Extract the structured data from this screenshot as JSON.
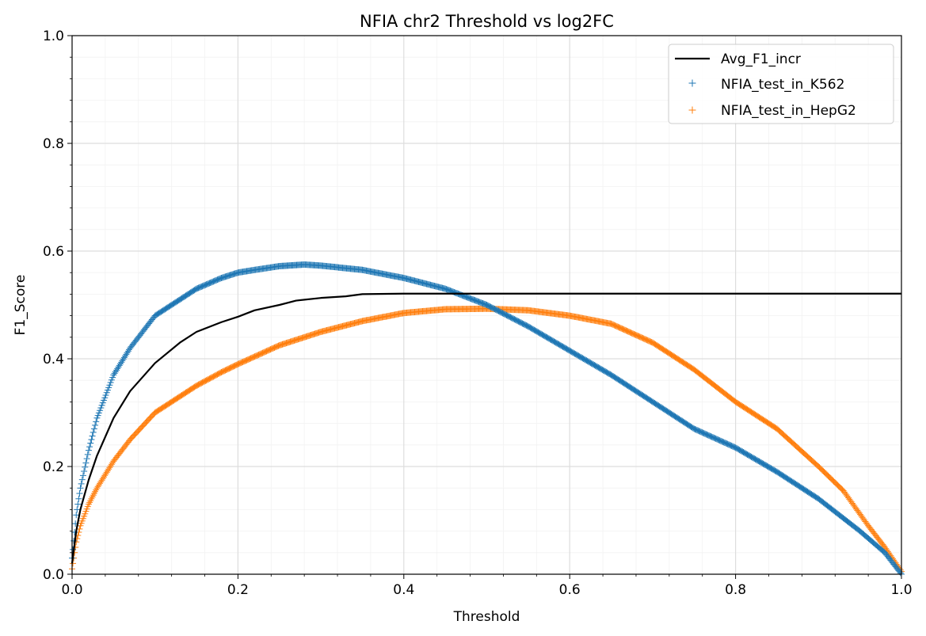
{
  "chart_data": {
    "type": "line",
    "title": "NFIA chr2 Threshold vs log2FC",
    "xlabel": "Threshold",
    "ylabel": "F1_Score",
    "xlim": [
      0,
      1
    ],
    "ylim": [
      0,
      1
    ],
    "x_ticks": [
      "0.0",
      "0.2",
      "0.4",
      "0.6",
      "0.8",
      "1.0"
    ],
    "y_ticks": [
      "0.0",
      "0.2",
      "0.4",
      "0.6",
      "0.8",
      "1.0"
    ],
    "grid": true,
    "minor_grid": true,
    "legend_position": "top-right",
    "series": [
      {
        "name": "Avg_F1_incr",
        "style": "line",
        "color": "#000000",
        "x": [
          0.0,
          0.005,
          0.01,
          0.02,
          0.03,
          0.05,
          0.07,
          0.1,
          0.13,
          0.15,
          0.18,
          0.2,
          0.22,
          0.25,
          0.27,
          0.3,
          0.33,
          0.35,
          0.4,
          0.5,
          0.6,
          0.7,
          0.8,
          0.9,
          1.0
        ],
        "y": [
          0.02,
          0.08,
          0.12,
          0.175,
          0.22,
          0.29,
          0.34,
          0.392,
          0.43,
          0.45,
          0.468,
          0.478,
          0.49,
          0.5,
          0.508,
          0.513,
          0.516,
          0.52,
          0.521,
          0.521,
          0.521,
          0.521,
          0.521,
          0.521,
          0.521
        ]
      },
      {
        "name": "NFIA_test_in_K562",
        "style": "markers",
        "marker": "+",
        "color": "#1f77b4",
        "x": [
          0.0,
          0.005,
          0.01,
          0.02,
          0.03,
          0.05,
          0.07,
          0.1,
          0.13,
          0.15,
          0.18,
          0.2,
          0.22,
          0.25,
          0.28,
          0.3,
          0.35,
          0.4,
          0.45,
          0.5,
          0.55,
          0.6,
          0.65,
          0.7,
          0.75,
          0.8,
          0.85,
          0.9,
          0.95,
          0.98,
          1.0
        ],
        "y": [
          0.03,
          0.11,
          0.16,
          0.23,
          0.29,
          0.37,
          0.42,
          0.48,
          0.51,
          0.53,
          0.55,
          0.56,
          0.565,
          0.572,
          0.575,
          0.573,
          0.565,
          0.55,
          0.53,
          0.5,
          0.46,
          0.415,
          0.37,
          0.32,
          0.27,
          0.235,
          0.19,
          0.14,
          0.08,
          0.04,
          0.0
        ]
      },
      {
        "name": "NFIA_test_in_HepG2",
        "style": "markers",
        "marker": "+",
        "color": "#ff7f0e",
        "x": [
          0.0,
          0.005,
          0.01,
          0.02,
          0.03,
          0.05,
          0.07,
          0.1,
          0.13,
          0.15,
          0.18,
          0.2,
          0.25,
          0.3,
          0.35,
          0.4,
          0.45,
          0.5,
          0.55,
          0.6,
          0.65,
          0.7,
          0.75,
          0.8,
          0.85,
          0.9,
          0.93,
          0.96,
          0.98,
          1.0
        ],
        "y": [
          0.01,
          0.06,
          0.09,
          0.13,
          0.16,
          0.21,
          0.25,
          0.3,
          0.33,
          0.35,
          0.375,
          0.39,
          0.425,
          0.45,
          0.47,
          0.485,
          0.492,
          0.493,
          0.49,
          0.48,
          0.465,
          0.43,
          0.38,
          0.32,
          0.27,
          0.2,
          0.155,
          0.09,
          0.05,
          0.005
        ]
      }
    ]
  }
}
